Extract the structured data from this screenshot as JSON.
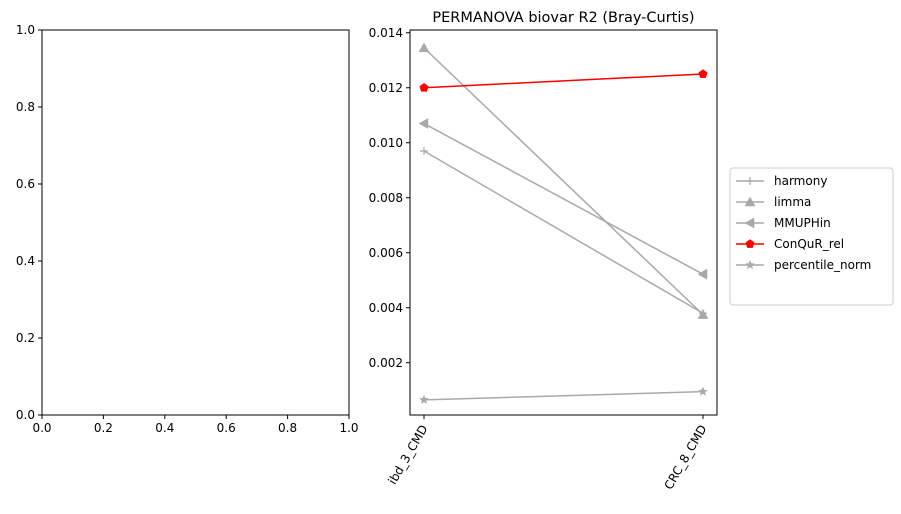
{
  "chart_data": [
    {
      "type": "line",
      "title": "",
      "xlabel": "",
      "ylabel": "",
      "xlim": [
        0,
        1
      ],
      "ylim": [
        0,
        1
      ],
      "xticks": [
        "0.0",
        "0.2",
        "0.4",
        "0.6",
        "0.8",
        "1.0"
      ],
      "yticks": [
        "0.0",
        "0.2",
        "0.4",
        "0.6",
        "0.8",
        "1.0"
      ],
      "series": []
    },
    {
      "type": "line",
      "title": "PERMANOVA biovar R2 (Bray-Curtis)",
      "xlabel": "",
      "ylabel": "",
      "categories": [
        "ibd_3_CMD",
        "CRC_8_CMD"
      ],
      "ylim": [
        0.0001,
        0.0141
      ],
      "yticks": [
        "0.002",
        "0.004",
        "0.006",
        "0.008",
        "0.010",
        "0.012",
        "0.014"
      ],
      "grid": false,
      "legend_position": "right, outside",
      "series": [
        {
          "name": "harmony",
          "values": [
            0.0097,
            0.0038
          ],
          "color": "#a9a9a9",
          "marker": "plus"
        },
        {
          "name": "limma",
          "values": [
            0.01345,
            0.00375
          ],
          "color": "#a9a9a9",
          "marker": "triangle-up"
        },
        {
          "name": "MMUPHin",
          "values": [
            0.0107,
            0.00522
          ],
          "color": "#a9a9a9",
          "marker": "triangle-left"
        },
        {
          "name": "ConQuR_rel",
          "values": [
            0.012,
            0.0125
          ],
          "color": "#ff0000",
          "marker": "pentagon"
        },
        {
          "name": "percentile_norm",
          "values": [
            0.00065,
            0.00095
          ],
          "color": "#a9a9a9",
          "marker": "star"
        }
      ]
    }
  ]
}
